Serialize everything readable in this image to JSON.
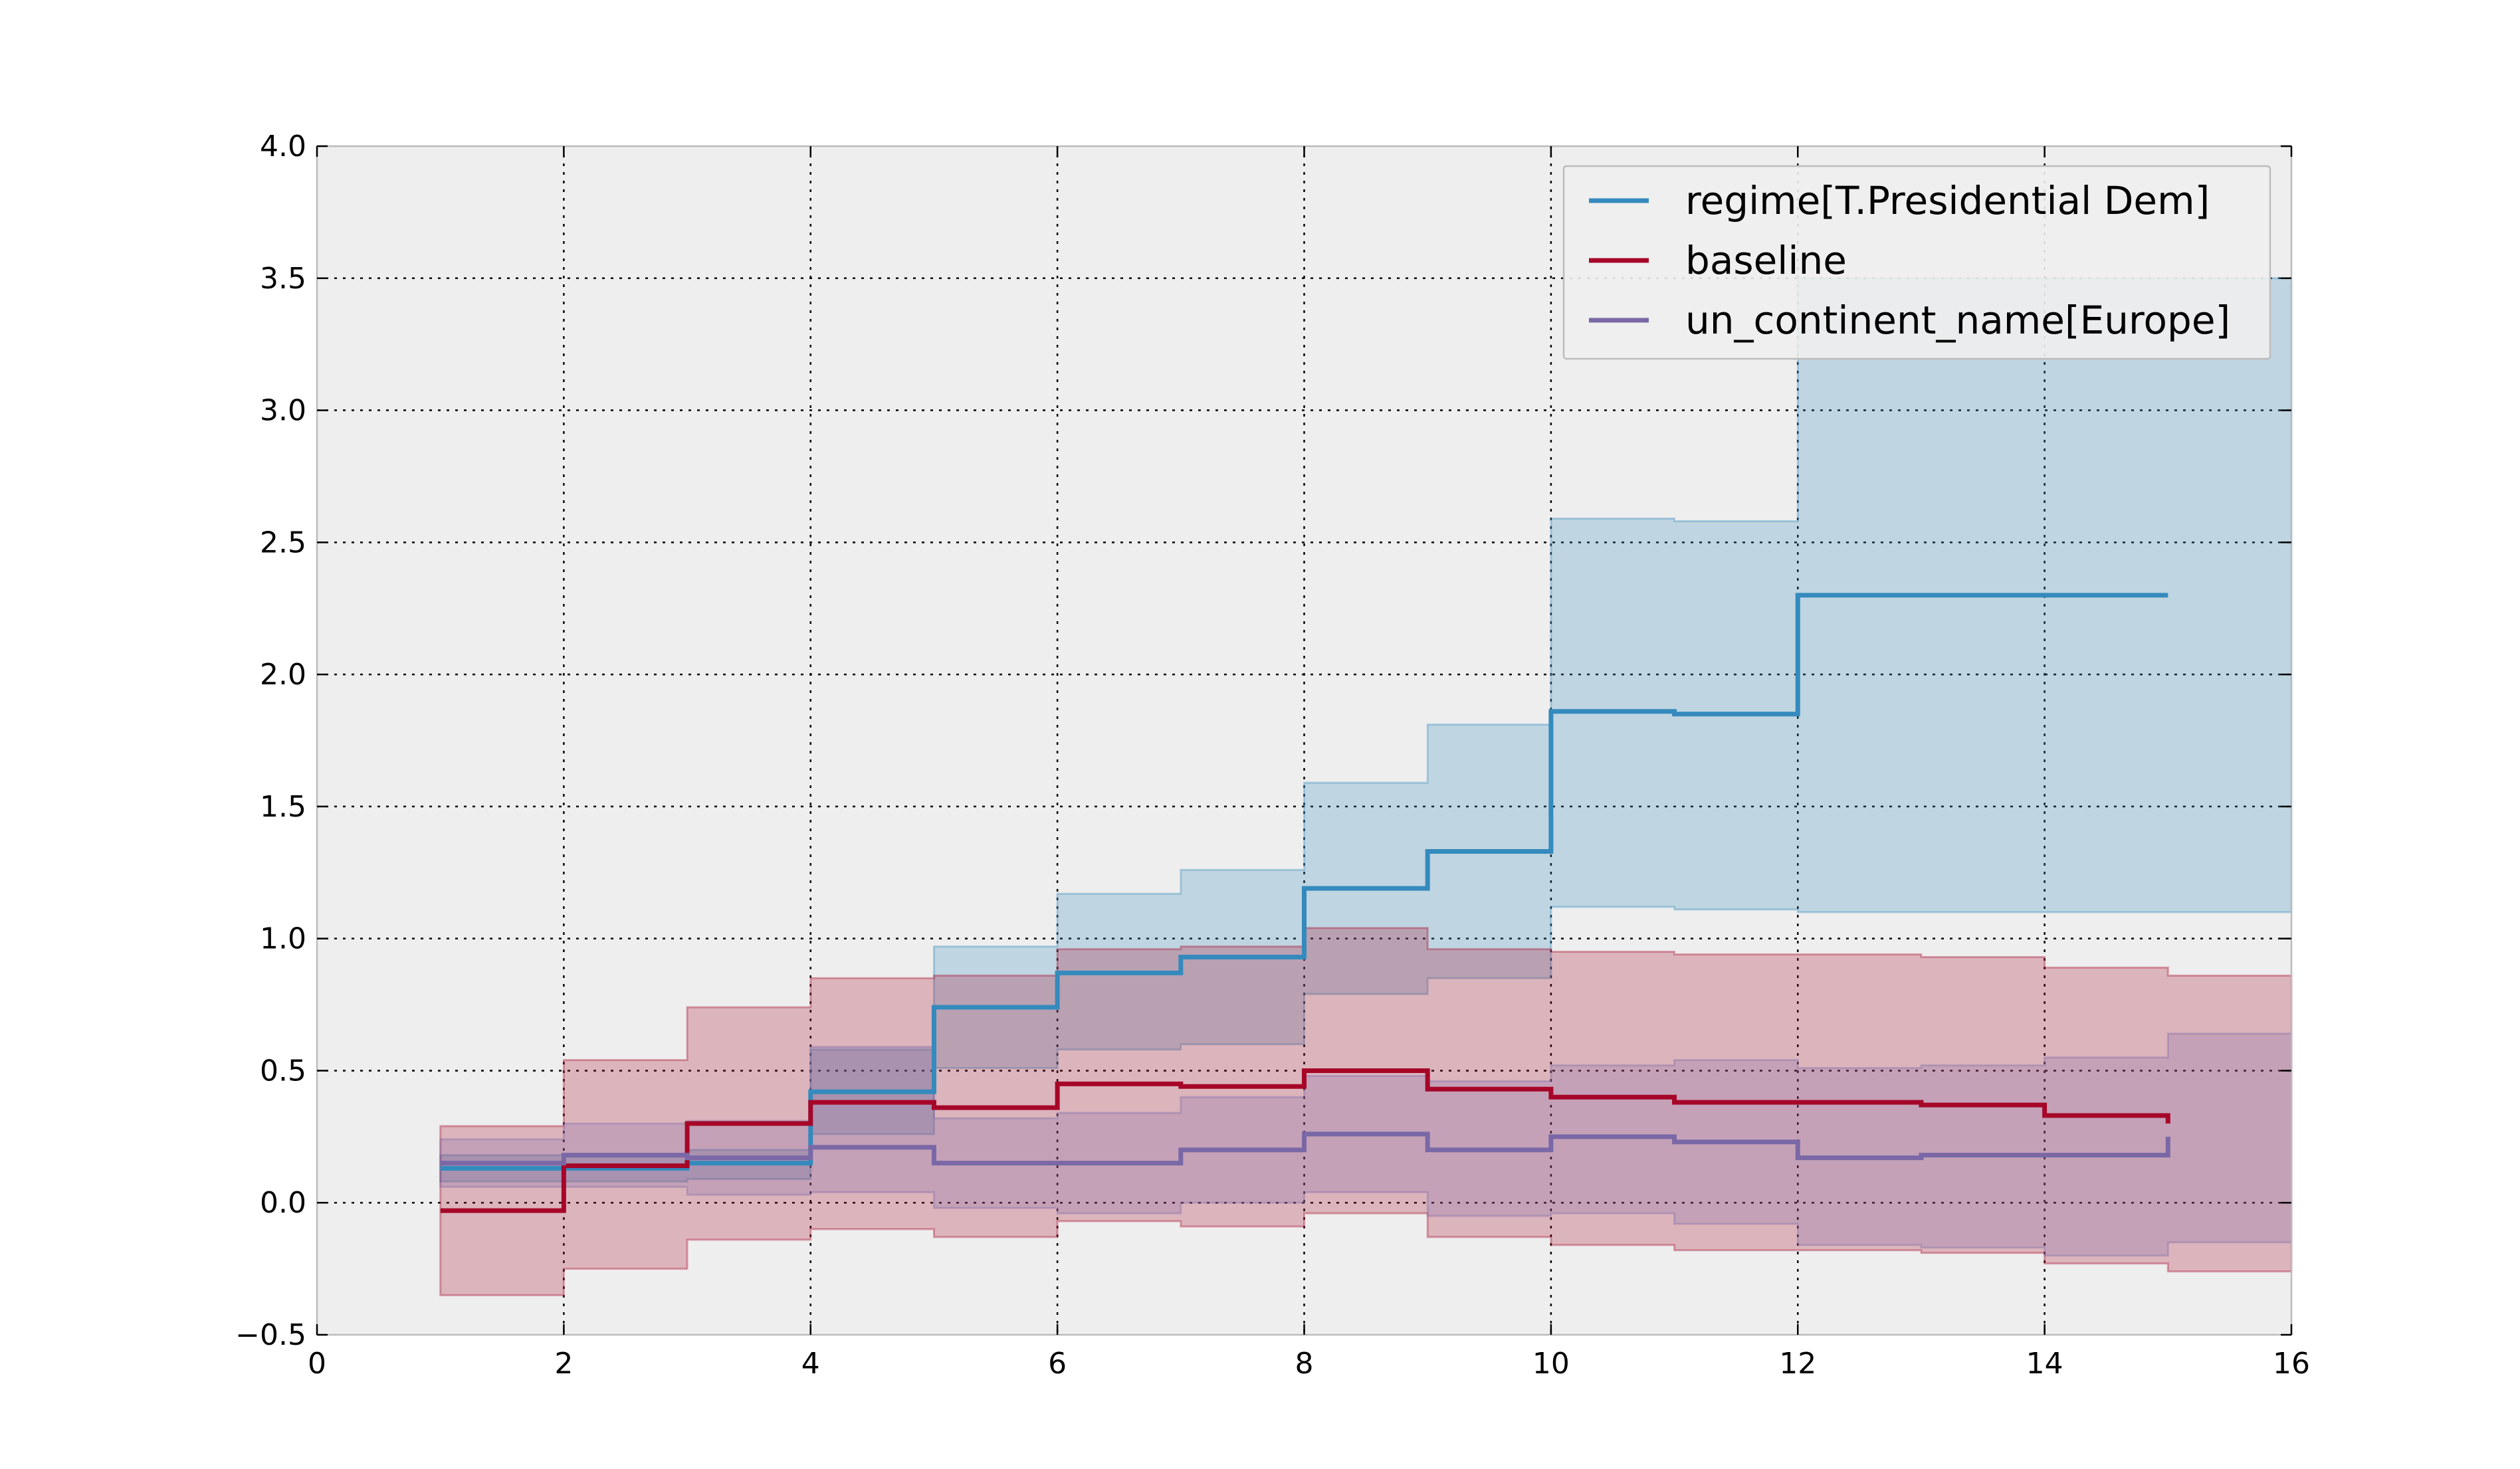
{
  "chart_data": {
    "type": "line",
    "step": "post",
    "title": "",
    "xlabel": "",
    "ylabel": "",
    "xlim": [
      0,
      16
    ],
    "ylim": [
      -0.5,
      4.0
    ],
    "xticks": [
      0,
      2,
      4,
      6,
      8,
      10,
      12,
      14,
      16
    ],
    "yticks": [
      -0.5,
      0.0,
      0.5,
      1.0,
      1.5,
      2.0,
      2.5,
      3.0,
      3.5,
      4.0
    ],
    "xtick_labels": [
      "0",
      "2",
      "4",
      "6",
      "8",
      "10",
      "12",
      "14",
      "16"
    ],
    "ytick_labels": [
      "−0.5",
      "0.0",
      "0.5",
      "1.0",
      "1.5",
      "2.0",
      "2.5",
      "3.0",
      "3.5",
      "4.0"
    ],
    "grid": true,
    "legend_position": "top-right",
    "x": [
      1,
      2,
      3,
      4,
      5,
      6,
      7,
      8,
      9,
      10,
      11,
      12,
      13,
      14,
      15
    ],
    "series": [
      {
        "name": "regime[T.Presidential Dem]",
        "color": "#348abd",
        "values": [
          0.13,
          0.13,
          0.15,
          0.42,
          0.74,
          0.87,
          0.93,
          1.19,
          1.33,
          1.86,
          1.85,
          2.3,
          2.3,
          2.3,
          2.3
        ],
        "lower": [
          0.08,
          0.08,
          0.09,
          0.26,
          0.51,
          0.58,
          0.6,
          0.79,
          0.85,
          1.12,
          1.11,
          1.1,
          1.1,
          1.1,
          1.1
        ],
        "upper": [
          0.18,
          0.18,
          0.2,
          0.58,
          0.97,
          1.17,
          1.26,
          1.59,
          1.81,
          2.59,
          2.58,
          3.5,
          3.5,
          3.5,
          3.5
        ]
      },
      {
        "name": "baseline",
        "color": "#a60628",
        "values": [
          -0.03,
          0.14,
          0.3,
          0.38,
          0.36,
          0.45,
          0.44,
          0.5,
          0.43,
          0.4,
          0.38,
          0.38,
          0.37,
          0.33,
          0.3
        ],
        "lower": [
          -0.35,
          -0.25,
          -0.14,
          -0.1,
          -0.13,
          -0.07,
          -0.09,
          -0.04,
          -0.13,
          -0.16,
          -0.18,
          -0.18,
          -0.19,
          -0.23,
          -0.26
        ],
        "upper": [
          0.29,
          0.54,
          0.74,
          0.85,
          0.86,
          0.96,
          0.97,
          1.04,
          0.96,
          0.95,
          0.94,
          0.94,
          0.93,
          0.89,
          0.86
        ]
      },
      {
        "name": "un_continent_name[Europe]",
        "color": "#7a68a6",
        "values": [
          0.15,
          0.18,
          0.17,
          0.21,
          0.15,
          0.15,
          0.2,
          0.26,
          0.2,
          0.25,
          0.23,
          0.17,
          0.18,
          0.18,
          0.25
        ],
        "lower": [
          0.06,
          0.06,
          0.03,
          0.04,
          -0.02,
          -0.04,
          0.0,
          0.04,
          -0.05,
          -0.04,
          -0.08,
          -0.16,
          -0.17,
          -0.2,
          -0.15
        ],
        "upper": [
          0.24,
          0.3,
          0.31,
          0.59,
          0.32,
          0.34,
          0.4,
          0.48,
          0.46,
          0.52,
          0.54,
          0.51,
          0.52,
          0.55,
          0.64
        ]
      }
    ]
  }
}
